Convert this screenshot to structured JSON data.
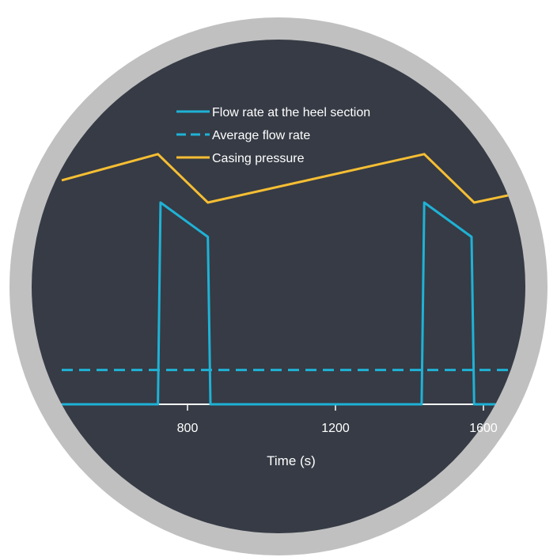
{
  "chart_data": {
    "type": "line",
    "title": "",
    "xlabel": "Time (s)",
    "ylabel": "",
    "x_ticks": [
      800,
      1200,
      1600
    ],
    "x_visible_range": [
      460,
      1860
    ],
    "legend_placement": "top-center",
    "grid": false,
    "series": [
      {
        "name": "Flow rate at the heel section",
        "style": "solid",
        "color": "#1fb2d6",
        "points": [
          [
            460,
            0.0
          ],
          [
            720,
            0.0
          ],
          [
            727,
            1.0
          ],
          [
            855,
            0.83
          ],
          [
            862,
            0.0
          ],
          [
            1433,
            0.0
          ],
          [
            1440,
            1.0
          ],
          [
            1568,
            0.83
          ],
          [
            1575,
            0.0
          ],
          [
            1860,
            0.0
          ]
        ]
      },
      {
        "name": "Average flow rate",
        "style": "dashed",
        "color": "#1fb2d6",
        "points": [
          [
            460,
            0.17
          ],
          [
            1860,
            0.17
          ]
        ]
      },
      {
        "name": "Casing pressure",
        "style": "solid",
        "color": "#f6be33",
        "points": [
          [
            460,
            1.11
          ],
          [
            720,
            1.24
          ],
          [
            855,
            1.0
          ],
          [
            1440,
            1.24
          ],
          [
            1575,
            1.0
          ],
          [
            1860,
            1.11
          ]
        ]
      }
    ]
  },
  "colors": {
    "ring": "#c0c0c0",
    "background": "#363b45",
    "axis": "#ffffff",
    "text": "#ffffff"
  }
}
